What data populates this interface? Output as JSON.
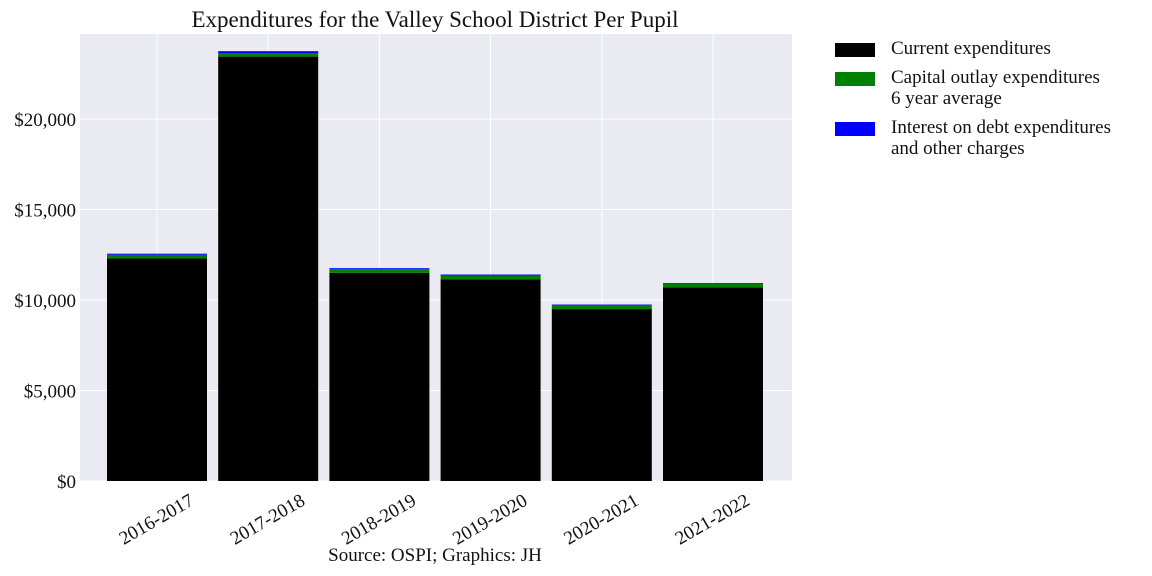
{
  "chart_data": {
    "type": "bar",
    "stacked": true,
    "title": "Expenditures for the Valley School District Per Pupil",
    "caption": "Source: OSPI; Graphics: JH",
    "xlabel": "",
    "ylabel": "",
    "categories": [
      "2016-2017",
      "2017-2018",
      "2018-2019",
      "2019-2020",
      "2020-2021",
      "2021-2022"
    ],
    "ylim": [
      0,
      24700
    ],
    "yticks": [
      0,
      5000,
      10000,
      15000,
      20000
    ],
    "ytick_labels": [
      "$0",
      "$5,000",
      "$10,000",
      "$15,000",
      "$20,000"
    ],
    "grid": true,
    "legend_position": "outside-top-right",
    "series": [
      {
        "name_lines": [
          "Current expenditures"
        ],
        "color": "#000000",
        "values": [
          12300,
          23450,
          11500,
          11150,
          9500,
          10700
        ]
      },
      {
        "name_lines": [
          "Capital outlay expenditures",
          "6 year average"
        ],
        "color": "#008000",
        "values": [
          200,
          200,
          200,
          200,
          230,
          200
        ]
      },
      {
        "name_lines": [
          "Interest on debt expenditures",
          "and other charges"
        ],
        "color": "#0000ff",
        "values": [
          60,
          100,
          60,
          60,
          20,
          40
        ]
      }
    ],
    "colors": {
      "plot_background": "#eaeaf2",
      "grid": "#ffffff"
    }
  }
}
